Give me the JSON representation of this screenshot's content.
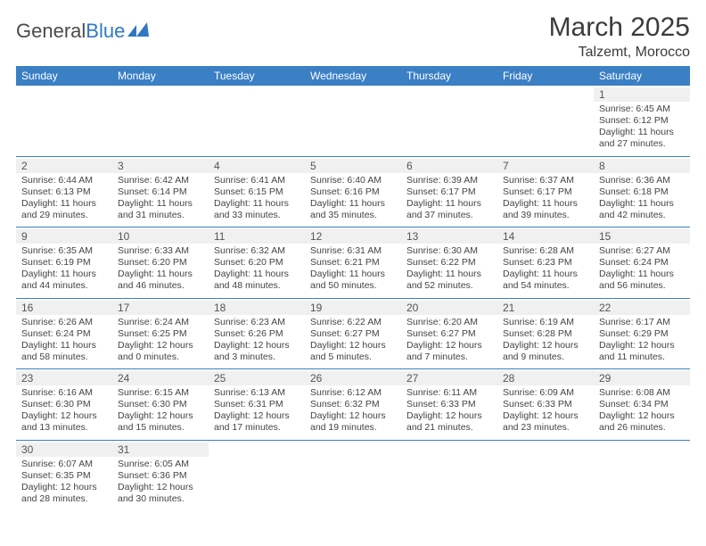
{
  "header": {
    "logo_dark": "General",
    "logo_blue": "Blue",
    "month_title": "March 2025",
    "location": "Talzemt, Morocco"
  },
  "colors": {
    "header_bg": "#3b7fc4",
    "header_text": "#ffffff",
    "daynum_bg": "#f0f0f0",
    "cell_border": "#3b7fc4",
    "logo_blue": "#2f78c3",
    "text": "#444444"
  },
  "day_headers": [
    "Sunday",
    "Monday",
    "Tuesday",
    "Wednesday",
    "Thursday",
    "Friday",
    "Saturday"
  ],
  "weeks": [
    [
      null,
      null,
      null,
      null,
      null,
      null,
      {
        "n": "1",
        "sr": "Sunrise: 6:45 AM",
        "ss": "Sunset: 6:12 PM",
        "d1": "Daylight: 11 hours",
        "d2": "and 27 minutes."
      }
    ],
    [
      {
        "n": "2",
        "sr": "Sunrise: 6:44 AM",
        "ss": "Sunset: 6:13 PM",
        "d1": "Daylight: 11 hours",
        "d2": "and 29 minutes."
      },
      {
        "n": "3",
        "sr": "Sunrise: 6:42 AM",
        "ss": "Sunset: 6:14 PM",
        "d1": "Daylight: 11 hours",
        "d2": "and 31 minutes."
      },
      {
        "n": "4",
        "sr": "Sunrise: 6:41 AM",
        "ss": "Sunset: 6:15 PM",
        "d1": "Daylight: 11 hours",
        "d2": "and 33 minutes."
      },
      {
        "n": "5",
        "sr": "Sunrise: 6:40 AM",
        "ss": "Sunset: 6:16 PM",
        "d1": "Daylight: 11 hours",
        "d2": "and 35 minutes."
      },
      {
        "n": "6",
        "sr": "Sunrise: 6:39 AM",
        "ss": "Sunset: 6:17 PM",
        "d1": "Daylight: 11 hours",
        "d2": "and 37 minutes."
      },
      {
        "n": "7",
        "sr": "Sunrise: 6:37 AM",
        "ss": "Sunset: 6:17 PM",
        "d1": "Daylight: 11 hours",
        "d2": "and 39 minutes."
      },
      {
        "n": "8",
        "sr": "Sunrise: 6:36 AM",
        "ss": "Sunset: 6:18 PM",
        "d1": "Daylight: 11 hours",
        "d2": "and 42 minutes."
      }
    ],
    [
      {
        "n": "9",
        "sr": "Sunrise: 6:35 AM",
        "ss": "Sunset: 6:19 PM",
        "d1": "Daylight: 11 hours",
        "d2": "and 44 minutes."
      },
      {
        "n": "10",
        "sr": "Sunrise: 6:33 AM",
        "ss": "Sunset: 6:20 PM",
        "d1": "Daylight: 11 hours",
        "d2": "and 46 minutes."
      },
      {
        "n": "11",
        "sr": "Sunrise: 6:32 AM",
        "ss": "Sunset: 6:20 PM",
        "d1": "Daylight: 11 hours",
        "d2": "and 48 minutes."
      },
      {
        "n": "12",
        "sr": "Sunrise: 6:31 AM",
        "ss": "Sunset: 6:21 PM",
        "d1": "Daylight: 11 hours",
        "d2": "and 50 minutes."
      },
      {
        "n": "13",
        "sr": "Sunrise: 6:30 AM",
        "ss": "Sunset: 6:22 PM",
        "d1": "Daylight: 11 hours",
        "d2": "and 52 minutes."
      },
      {
        "n": "14",
        "sr": "Sunrise: 6:28 AM",
        "ss": "Sunset: 6:23 PM",
        "d1": "Daylight: 11 hours",
        "d2": "and 54 minutes."
      },
      {
        "n": "15",
        "sr": "Sunrise: 6:27 AM",
        "ss": "Sunset: 6:24 PM",
        "d1": "Daylight: 11 hours",
        "d2": "and 56 minutes."
      }
    ],
    [
      {
        "n": "16",
        "sr": "Sunrise: 6:26 AM",
        "ss": "Sunset: 6:24 PM",
        "d1": "Daylight: 11 hours",
        "d2": "and 58 minutes."
      },
      {
        "n": "17",
        "sr": "Sunrise: 6:24 AM",
        "ss": "Sunset: 6:25 PM",
        "d1": "Daylight: 12 hours",
        "d2": "and 0 minutes."
      },
      {
        "n": "18",
        "sr": "Sunrise: 6:23 AM",
        "ss": "Sunset: 6:26 PM",
        "d1": "Daylight: 12 hours",
        "d2": "and 3 minutes."
      },
      {
        "n": "19",
        "sr": "Sunrise: 6:22 AM",
        "ss": "Sunset: 6:27 PM",
        "d1": "Daylight: 12 hours",
        "d2": "and 5 minutes."
      },
      {
        "n": "20",
        "sr": "Sunrise: 6:20 AM",
        "ss": "Sunset: 6:27 PM",
        "d1": "Daylight: 12 hours",
        "d2": "and 7 minutes."
      },
      {
        "n": "21",
        "sr": "Sunrise: 6:19 AM",
        "ss": "Sunset: 6:28 PM",
        "d1": "Daylight: 12 hours",
        "d2": "and 9 minutes."
      },
      {
        "n": "22",
        "sr": "Sunrise: 6:17 AM",
        "ss": "Sunset: 6:29 PM",
        "d1": "Daylight: 12 hours",
        "d2": "and 11 minutes."
      }
    ],
    [
      {
        "n": "23",
        "sr": "Sunrise: 6:16 AM",
        "ss": "Sunset: 6:30 PM",
        "d1": "Daylight: 12 hours",
        "d2": "and 13 minutes."
      },
      {
        "n": "24",
        "sr": "Sunrise: 6:15 AM",
        "ss": "Sunset: 6:30 PM",
        "d1": "Daylight: 12 hours",
        "d2": "and 15 minutes."
      },
      {
        "n": "25",
        "sr": "Sunrise: 6:13 AM",
        "ss": "Sunset: 6:31 PM",
        "d1": "Daylight: 12 hours",
        "d2": "and 17 minutes."
      },
      {
        "n": "26",
        "sr": "Sunrise: 6:12 AM",
        "ss": "Sunset: 6:32 PM",
        "d1": "Daylight: 12 hours",
        "d2": "and 19 minutes."
      },
      {
        "n": "27",
        "sr": "Sunrise: 6:11 AM",
        "ss": "Sunset: 6:33 PM",
        "d1": "Daylight: 12 hours",
        "d2": "and 21 minutes."
      },
      {
        "n": "28",
        "sr": "Sunrise: 6:09 AM",
        "ss": "Sunset: 6:33 PM",
        "d1": "Daylight: 12 hours",
        "d2": "and 23 minutes."
      },
      {
        "n": "29",
        "sr": "Sunrise: 6:08 AM",
        "ss": "Sunset: 6:34 PM",
        "d1": "Daylight: 12 hours",
        "d2": "and 26 minutes."
      }
    ],
    [
      {
        "n": "30",
        "sr": "Sunrise: 6:07 AM",
        "ss": "Sunset: 6:35 PM",
        "d1": "Daylight: 12 hours",
        "d2": "and 28 minutes."
      },
      {
        "n": "31",
        "sr": "Sunrise: 6:05 AM",
        "ss": "Sunset: 6:36 PM",
        "d1": "Daylight: 12 hours",
        "d2": "and 30 minutes."
      },
      null,
      null,
      null,
      null,
      null
    ]
  ]
}
